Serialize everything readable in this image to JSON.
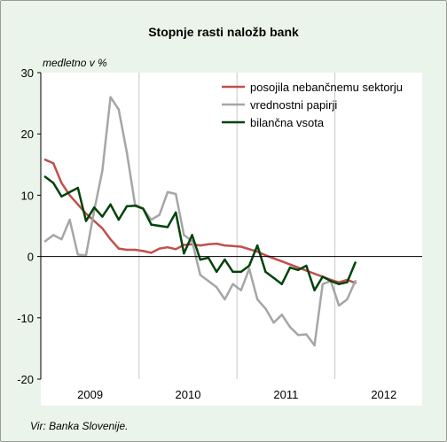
{
  "chart_data": {
    "type": "line",
    "title": "Stopnje rasti naložb bank",
    "ylabel": "medletno v %",
    "xlabel": "",
    "source": "Vir: Banka Slovenije.",
    "ylim": [
      -20,
      30
    ],
    "yticks": [
      30,
      20,
      10,
      0,
      -10,
      -20
    ],
    "x_start": "2009-01",
    "year_labels": [
      "2009",
      "2010",
      "2011",
      "2012"
    ],
    "grid": false,
    "legend_position": "top-right",
    "x": [
      "2009-01",
      "2009-02",
      "2009-03",
      "2009-04",
      "2009-05",
      "2009-06",
      "2009-07",
      "2009-08",
      "2009-09",
      "2009-10",
      "2009-11",
      "2009-12",
      "2010-01",
      "2010-02",
      "2010-03",
      "2010-04",
      "2010-05",
      "2010-06",
      "2010-07",
      "2010-08",
      "2010-09",
      "2010-10",
      "2010-11",
      "2010-12",
      "2011-01",
      "2011-02",
      "2011-03",
      "2011-04",
      "2011-05",
      "2011-06",
      "2011-07",
      "2011-08",
      "2011-09",
      "2011-10",
      "2011-11",
      "2011-12",
      "2012-01",
      "2012-02",
      "2012-03"
    ],
    "series": [
      {
        "name": "posojila nebančnemu sektorju",
        "color": "#c0504d",
        "values": [
          15.8,
          15.2,
          12.0,
          10.0,
          8.5,
          7.0,
          5.8,
          4.6,
          2.8,
          1.3,
          1.1,
          1.1,
          0.9,
          0.6,
          1.3,
          1.5,
          1.2,
          1.9,
          2.0,
          1.8,
          2.0,
          2.1,
          1.8,
          1.7,
          1.6,
          1.2,
          0.8,
          0.2,
          -0.3,
          -0.8,
          -1.3,
          -1.8,
          -2.3,
          -2.8,
          -3.3,
          -3.8,
          -4.2,
          -3.8,
          -4.3
        ]
      },
      {
        "name": "vrednostni papirji",
        "color": "#a6a6a6",
        "values": [
          2.5,
          3.5,
          2.8,
          6.0,
          0.3,
          0.2,
          7.5,
          14.0,
          26.0,
          24.0,
          17.0,
          8.5,
          7.8,
          6.0,
          6.8,
          10.5,
          10.2,
          3.5,
          2.5,
          -3.0,
          -4.0,
          -5.0,
          -7.0,
          -4.5,
          -5.5,
          -2.0,
          -7.0,
          -8.5,
          -10.8,
          -9.5,
          -11.5,
          -12.8,
          -12.7,
          -14.5,
          -4.5,
          -4.0,
          -8.0,
          -7.0,
          -4.0
        ]
      },
      {
        "name": "bilančna vsota",
        "color": "#00430a",
        "values": [
          13.0,
          12.0,
          9.8,
          10.5,
          11.2,
          5.8,
          8.0,
          6.5,
          8.5,
          6.0,
          8.2,
          8.3,
          7.8,
          5.2,
          5.0,
          4.8,
          7.2,
          0.5,
          3.5,
          -0.5,
          -0.2,
          -2.5,
          -0.5,
          -2.5,
          -2.5,
          -1.5,
          1.8,
          -2.5,
          -3.5,
          -4.5,
          -1.8,
          -2.2,
          -1.5,
          -5.5,
          -3.3,
          -4.0,
          -4.5,
          -4.2,
          -1.0
        ]
      }
    ]
  }
}
